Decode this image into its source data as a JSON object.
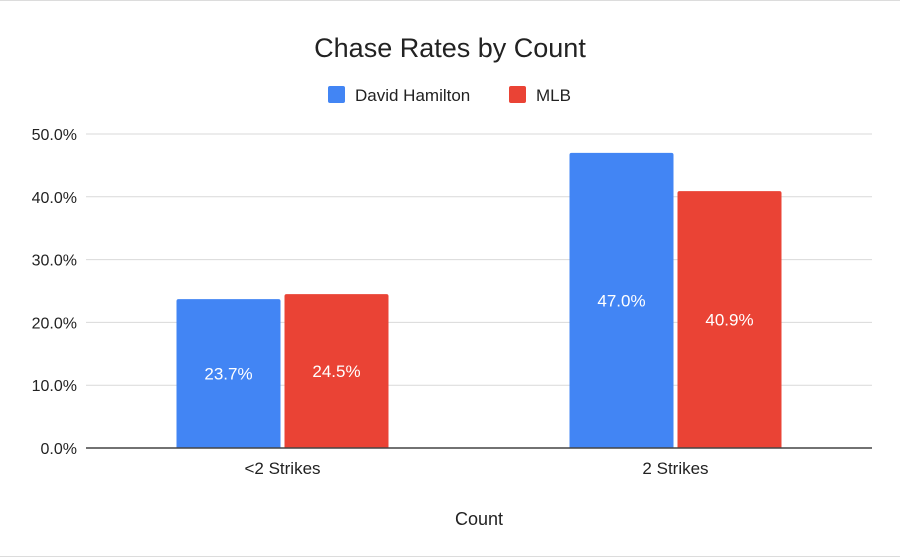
{
  "chart_data": {
    "type": "bar",
    "title": "Chase Rates by Count",
    "xlabel": "Count",
    "ylabel": "",
    "categories": [
      "<2 Strikes",
      "2 Strikes"
    ],
    "series": [
      {
        "name": "David Hamilton",
        "values": [
          23.7,
          47.0
        ],
        "color": "#4285f4"
      },
      {
        "name": "MLB",
        "values": [
          24.5,
          40.9
        ],
        "color": "#ea4335"
      }
    ],
    "data_labels": [
      [
        "23.7%",
        "47.0%"
      ],
      [
        "24.5%",
        "40.9%"
      ]
    ],
    "ylim": [
      0,
      50
    ],
    "y_ticks": [
      0,
      10,
      20,
      30,
      40,
      50
    ],
    "y_tick_labels": [
      "0.0%",
      "10.0%",
      "20.0%",
      "30.0%",
      "40.0%",
      "50.0%"
    ],
    "grid": true,
    "legend_position": "top-center",
    "colors": {
      "grid": "#d9d9d9",
      "axis": "#444444",
      "text": "#222222",
      "data_label": "#ffffff"
    }
  }
}
